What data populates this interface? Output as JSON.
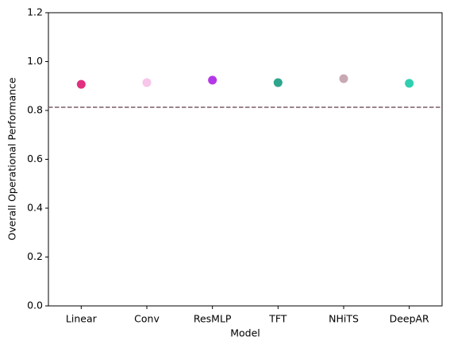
{
  "chart_data": {
    "type": "scatter",
    "xlabel": "Model",
    "ylabel": "Overall Operational Performance",
    "categories": [
      "Linear",
      "Conv",
      "ResMLP",
      "TFT",
      "NHiTS",
      "DeepAR"
    ],
    "values": [
      0.907,
      0.914,
      0.924,
      0.914,
      0.93,
      0.911
    ],
    "colors": [
      "#e0307f",
      "#f7c6ea",
      "#b438e8",
      "#2ea58c",
      "#c8a8b4",
      "#2fcfb0"
    ],
    "reference_line": {
      "value": 0.813,
      "color": "#7a5c63",
      "style": "dashed"
    },
    "ylim": [
      0,
      1.2
    ],
    "yticks": [
      {
        "value": 0,
        "label": "0.0"
      },
      0.2,
      0.4,
      0.6,
      0.8,
      {
        "value": 1,
        "label": "1.0"
      },
      1.2
    ],
    "grid": false
  }
}
